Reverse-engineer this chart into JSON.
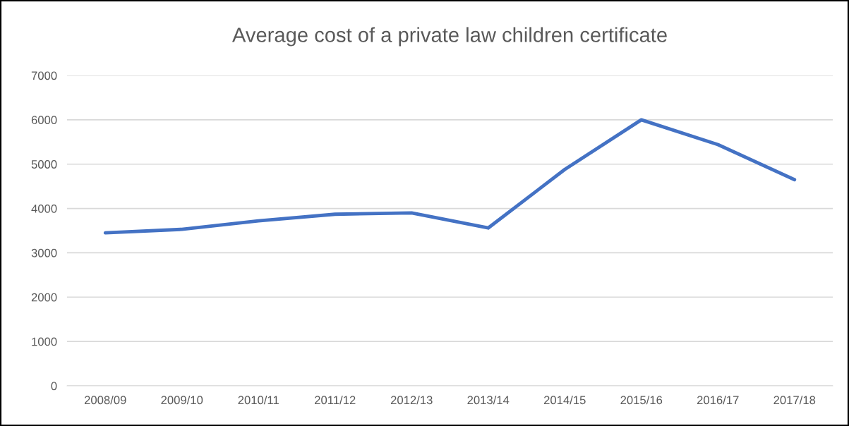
{
  "chart_data": {
    "type": "line",
    "title": "Average cost of a private law children certificate",
    "categories": [
      "2008/09",
      "2009/10",
      "2010/11",
      "2011/12",
      "2012/13",
      "2013/14",
      "2014/15",
      "2015/16",
      "2016/17",
      "2017/18"
    ],
    "series": [
      {
        "color": "#4472c4",
        "values": [
          3450,
          3530,
          3720,
          3870,
          3900,
          3560,
          4880,
          6000,
          5440,
          4650
        ]
      }
    ],
    "ylim": [
      0,
      7000
    ],
    "yticks": [
      0,
      1000,
      2000,
      3000,
      4000,
      5000,
      6000,
      7000
    ],
    "grid": "y",
    "marker": "none",
    "line_style": "solid",
    "legend": false
  }
}
